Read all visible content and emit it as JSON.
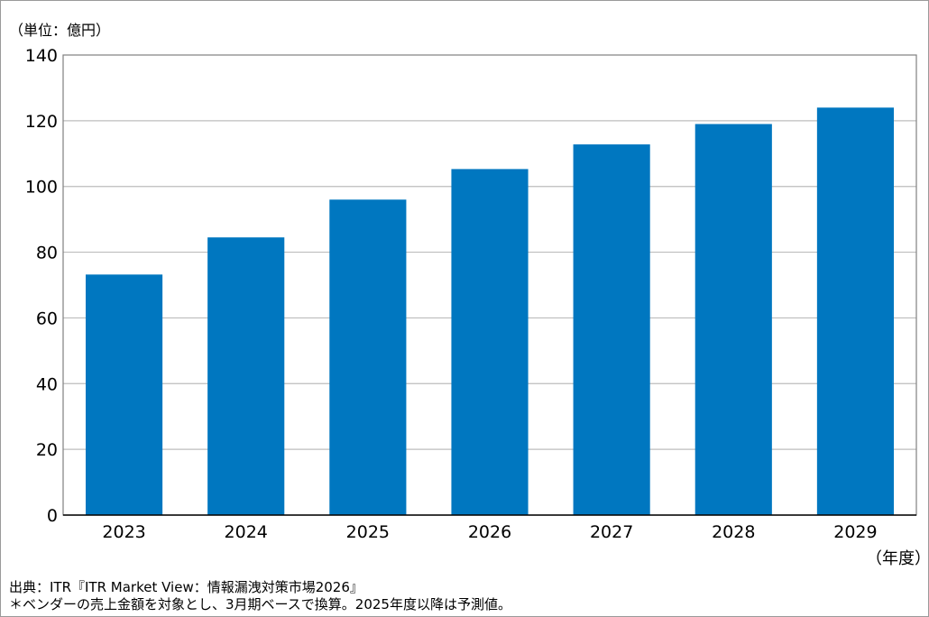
{
  "chart_data": {
    "type": "bar",
    "unit_label": "（単位：億円）",
    "x_unit_label": "（年度）",
    "categories": [
      "2023",
      "2024",
      "2025",
      "2026",
      "2027",
      "2028",
      "2029"
    ],
    "values": [
      73.2,
      84.5,
      96.0,
      105.3,
      112.8,
      119.0,
      124.0
    ],
    "ylim": [
      0,
      140
    ],
    "yticks": [
      0,
      20,
      40,
      60,
      80,
      100,
      120,
      140
    ],
    "grid": true,
    "bar_color": "#0077c0",
    "grid_color": "#bdbdbd"
  },
  "footnotes": {
    "source": "出典：ITR『ITR Market View：情報漏洩対策市場2026』",
    "note": "＊ベンダーの売上金額を対象とし、3月期ベースで換算。2025年度以降は予測値。"
  }
}
